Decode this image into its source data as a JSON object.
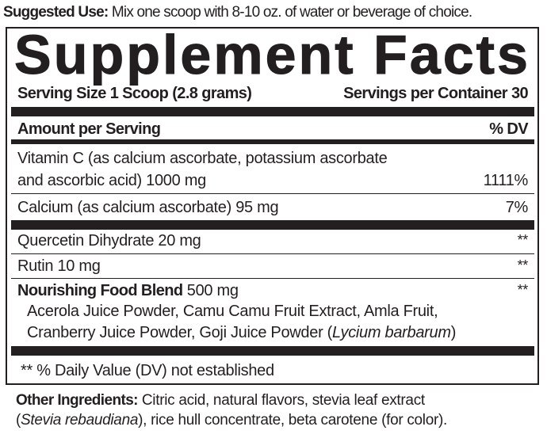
{
  "suggested_use": {
    "label": "Suggested Use:",
    "text": " Mix one scoop with 8-10 oz. of water or beverage of choice."
  },
  "title": "Supplement Facts",
  "serving_size": "Serving Size 1 Scoop (2.8 grams)",
  "servings_per_container": "Servings per Container 30",
  "header": {
    "amount": "Amount per Serving",
    "dv": "% DV"
  },
  "rows": [
    {
      "line1": "Vitamin C (as calcium ascorbate, potassium ascorbate",
      "line2": "and ascorbic acid) 1000 mg",
      "dv": "1111%"
    },
    {
      "name": "Calcium (as calcium ascorbate) 95 mg",
      "dv": "7%"
    },
    {
      "name": "Quercetin Dihydrate 20 mg",
      "dv": "**"
    },
    {
      "name": "Rutin 10 mg",
      "dv": "**"
    },
    {
      "name_bold": "Nourishing Food Blend",
      "amount": " 500 mg",
      "dv": "**",
      "ingredients_line1": "Acerola Juice Powder, Camu Camu Fruit Extract, Amla Fruit,",
      "ingredients_line2": "Cranberry Juice Powder, Goji Juice Powder (",
      "ingredients_italic": "Lycium barbarum",
      "ingredients_end": ")"
    }
  ],
  "footnote": "** % Daily Value (DV) not established",
  "other_ingredients": {
    "label": "Other Ingredients:",
    "line1": " Citric acid, natural flavors, stevia leaf extract",
    "open": "(",
    "italic": "Stevia rebaudiana",
    "line2": "), rice hull concentrate, beta carotene (for color)."
  }
}
